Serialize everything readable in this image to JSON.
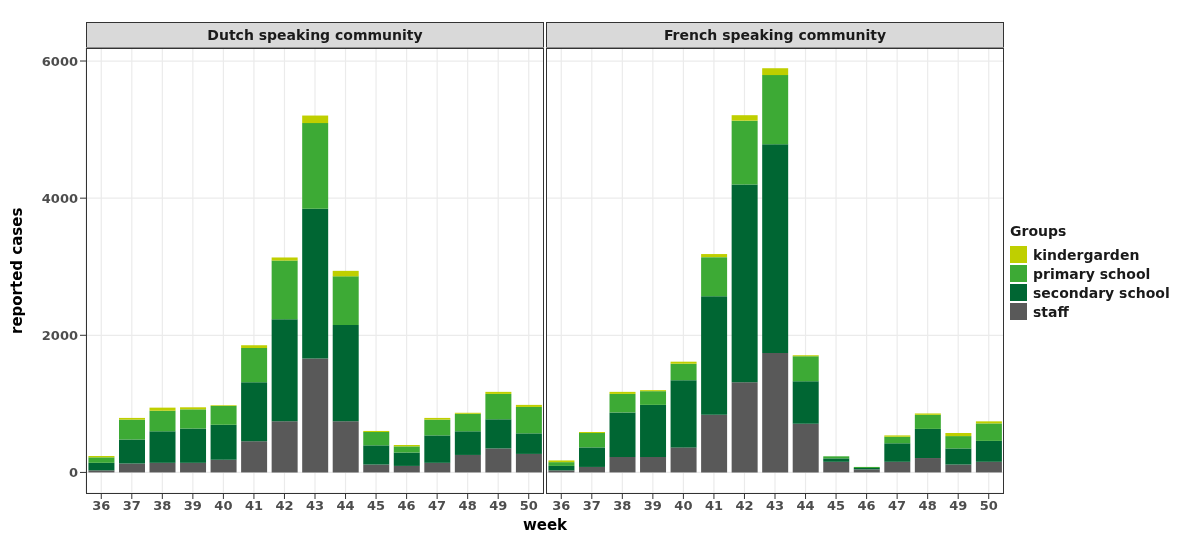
{
  "chart_data": [
    {
      "type": "bar",
      "title": "Dutch speaking community",
      "xlabel": "week",
      "ylabel": "reported cases",
      "stacked": true,
      "grid": true,
      "legend": "right",
      "legend_title": "Groups",
      "categories": [
        "36",
        "37",
        "38",
        "39",
        "40",
        "41",
        "42",
        "43",
        "44",
        "45",
        "46",
        "47",
        "48",
        "49",
        "50"
      ],
      "ylim": [
        -300,
        6190
      ],
      "yticks": [
        0,
        2000,
        4000,
        6000
      ],
      "series": [
        {
          "name": "staff",
          "color": "#595959",
          "values": [
            30,
            130,
            140,
            140,
            185,
            455,
            745,
            1660,
            745,
            115,
            95,
            140,
            255,
            350,
            270
          ]
        },
        {
          "name": "secondary school",
          "color": "#006633",
          "values": [
            110,
            350,
            460,
            500,
            510,
            860,
            1490,
            2185,
            1405,
            280,
            195,
            400,
            345,
            425,
            300
          ]
        },
        {
          "name": "primary school",
          "color": "#3daa35",
          "values": [
            80,
            290,
            300,
            280,
            275,
            500,
            855,
            1250,
            710,
            195,
            90,
            230,
            255,
            370,
            385
          ]
        },
        {
          "name": "kindergarden",
          "color": "#bfcf00",
          "values": [
            20,
            25,
            45,
            30,
            10,
            40,
            45,
            110,
            80,
            15,
            20,
            25,
            15,
            30,
            30
          ]
        }
      ]
    },
    {
      "type": "bar",
      "title": "French speaking community",
      "stacked": true,
      "grid": true,
      "tick_labels": "x",
      "categories": [
        "36",
        "37",
        "38",
        "39",
        "40",
        "41",
        "42",
        "43",
        "44",
        "45",
        "46",
        "47",
        "48",
        "49",
        "50"
      ],
      "ylim": [
        -300,
        6190
      ],
      "yticks": [
        0,
        2000,
        4000,
        6000
      ],
      "series": [
        {
          "color": "#595959",
          "values": [
            30,
            80,
            225,
            225,
            365,
            840,
            1315,
            1740,
            710,
            155,
            45,
            155,
            210,
            115,
            155
          ]
        },
        {
          "color": "#006633",
          "values": [
            65,
            285,
            650,
            760,
            980,
            1730,
            2885,
            3045,
            620,
            50,
            20,
            270,
            425,
            235,
            305
          ]
        },
        {
          "color": "#3daa35",
          "values": [
            55,
            210,
            270,
            200,
            240,
            570,
            930,
            1010,
            365,
            30,
            15,
            95,
            205,
            180,
            255
          ]
        },
        {
          "color": "#bfcf00",
          "values": [
            25,
            15,
            30,
            15,
            30,
            45,
            80,
            100,
            15,
            null,
            0,
            20,
            20,
            45,
            30
          ]
        }
      ]
    }
  ]
}
